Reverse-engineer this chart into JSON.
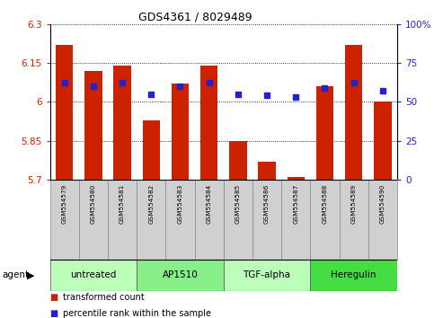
{
  "title": "GDS4361 / 8029489",
  "samples": [
    "GSM554579",
    "GSM554580",
    "GSM554581",
    "GSM554582",
    "GSM554583",
    "GSM554584",
    "GSM554585",
    "GSM554586",
    "GSM554587",
    "GSM554588",
    "GSM554589",
    "GSM554590"
  ],
  "bar_values": [
    6.22,
    6.12,
    6.14,
    5.93,
    6.07,
    6.14,
    5.85,
    5.77,
    5.71,
    6.06,
    6.22,
    6.0
  ],
  "percentile_values": [
    62,
    60,
    62,
    55,
    60,
    62,
    55,
    54,
    53,
    59,
    62,
    57
  ],
  "ymin": 5.7,
  "ymax": 6.3,
  "yticks": [
    5.7,
    5.85,
    6.0,
    6.15,
    6.3
  ],
  "ytick_labels": [
    "5.7",
    "5.85",
    "6",
    "6.15",
    "6.3"
  ],
  "y2ticks": [
    0,
    25,
    50,
    75,
    100
  ],
  "y2tick_labels": [
    "0",
    "25",
    "50",
    "75",
    "100%"
  ],
  "bar_color": "#cc2200",
  "dot_color": "#2222cc",
  "groups": [
    {
      "label": "untreated",
      "start": 0,
      "end": 3,
      "color": "#bbffbb"
    },
    {
      "label": "AP1510",
      "start": 3,
      "end": 6,
      "color": "#88ee88"
    },
    {
      "label": "TGF-alpha",
      "start": 6,
      "end": 9,
      "color": "#bbffbb"
    },
    {
      "label": "Heregulin",
      "start": 9,
      "end": 12,
      "color": "#44dd44"
    }
  ],
  "legend_bar_label": "transformed count",
  "legend_dot_label": "percentile rank within the sample",
  "bar_width": 0.6,
  "sample_box_color": "#d0d0d0",
  "agent_label": "agent"
}
